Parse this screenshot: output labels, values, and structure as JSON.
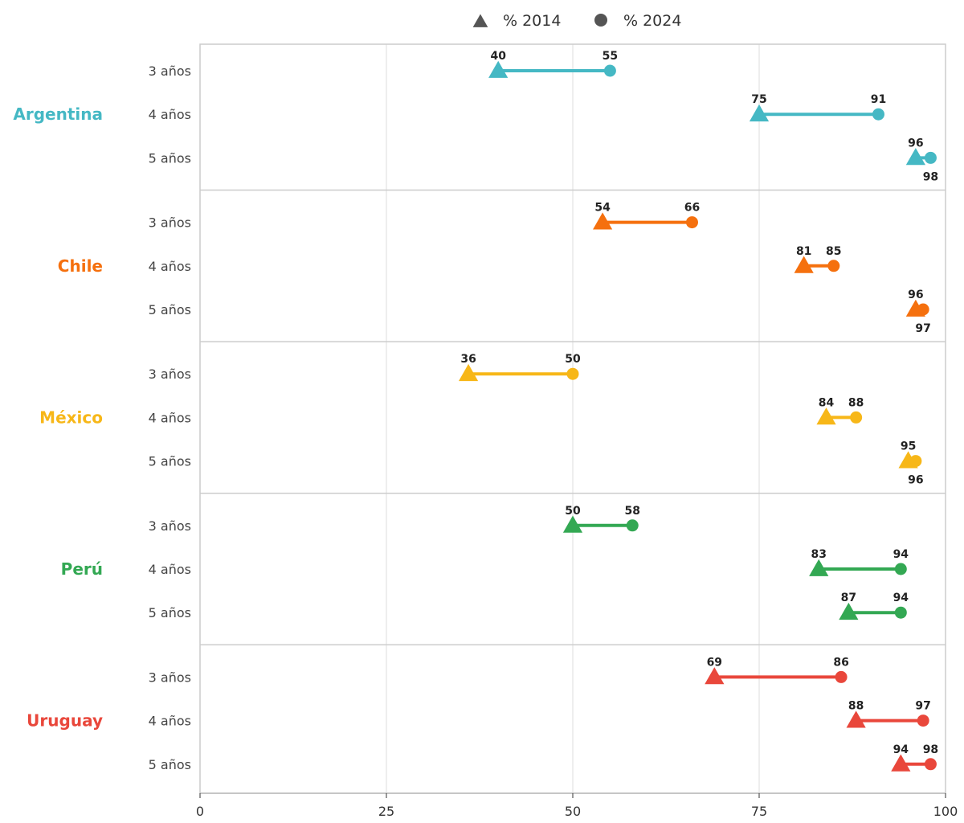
{
  "chart_data": {
    "type": "dumbbell",
    "legend": {
      "position": "top-center",
      "items": [
        {
          "label": "% 2014",
          "marker": "triangle",
          "color": "#555555"
        },
        {
          "label": "% 2024",
          "marker": "circle",
          "color": "#555555"
        }
      ]
    },
    "xlim": [
      0,
      100
    ],
    "x_ticks": [
      "0",
      "25",
      "50",
      "75",
      "100"
    ],
    "grid": "vertical",
    "groups": [
      {
        "country": "Argentina",
        "color": "#45b8c4",
        "rows": [
          {
            "age": "3 años",
            "v2014": 40,
            "v2024": 55
          },
          {
            "age": "4 años",
            "v2014": 75,
            "v2024": 91
          },
          {
            "age": "5 años",
            "v2014": 96,
            "v2024": 98
          }
        ]
      },
      {
        "country": "Chile",
        "color": "#f5700e",
        "rows": [
          {
            "age": "3 años",
            "v2014": 54,
            "v2024": 66
          },
          {
            "age": "4 años",
            "v2014": 81,
            "v2024": 85
          },
          {
            "age": "5 años",
            "v2014": 96,
            "v2024": 97
          }
        ]
      },
      {
        "country": "México",
        "color": "#f7b718",
        "rows": [
          {
            "age": "3 años",
            "v2014": 36,
            "v2024": 50
          },
          {
            "age": "4 años",
            "v2014": 84,
            "v2024": 88
          },
          {
            "age": "5 años",
            "v2014": 95,
            "v2024": 96
          }
        ]
      },
      {
        "country": "Perú",
        "color": "#33a853",
        "rows": [
          {
            "age": "3 años",
            "v2014": 50,
            "v2024": 58
          },
          {
            "age": "4 años",
            "v2014": 83,
            "v2024": 94
          },
          {
            "age": "5 años",
            "v2014": 87,
            "v2024": 94
          }
        ]
      },
      {
        "country": "Uruguay",
        "color": "#e9473b",
        "rows": [
          {
            "age": "3 años",
            "v2014": 69,
            "v2024": 86
          },
          {
            "age": "4 años",
            "v2014": 88,
            "v2024": 97
          },
          {
            "age": "5 años",
            "v2014": 94,
            "v2024": 98
          }
        ]
      }
    ]
  }
}
